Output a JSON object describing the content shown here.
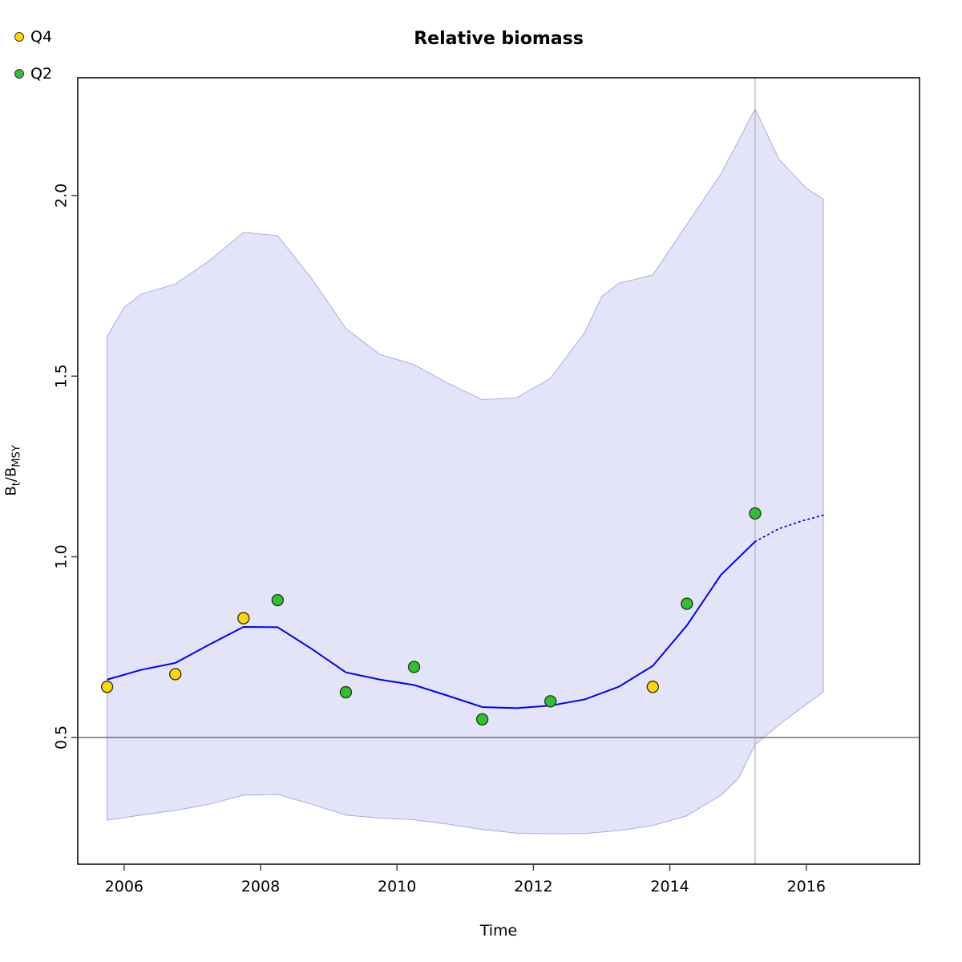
{
  "title": "Relative biomass",
  "legend": {
    "position": "top-left",
    "items": [
      {
        "label": "Q4",
        "color": "#FFD700"
      },
      {
        "label": "Q2",
        "color": "#2DC32D"
      }
    ]
  },
  "axes": {
    "x": {
      "label": "Time",
      "ticks": [
        "2006",
        "2008",
        "2010",
        "2012",
        "2014",
        "2016"
      ],
      "tick_values": [
        2006,
        2008,
        2010,
        2012,
        2014,
        2016
      ],
      "range": [
        2005.32,
        2017.66
      ]
    },
    "y": {
      "label_plain": "Bt/BMSY",
      "label_parts": [
        {
          "t": "B",
          "sub": false
        },
        {
          "t": "t",
          "sub": true
        },
        {
          "t": "/",
          "sub": false
        },
        {
          "t": "B",
          "sub": false
        },
        {
          "t": "MSY",
          "sub": true
        }
      ],
      "ticks": [
        "0.5",
        "1.0",
        "1.5",
        "2.0"
      ],
      "tick_values": [
        0.5,
        1.0,
        1.5,
        2.0
      ],
      "range": [
        0.149,
        2.326
      ]
    }
  },
  "colors": {
    "median_line": "#0000FF",
    "band_fill": "#E4E4F8",
    "band_stroke": "#AAAAE6",
    "q4_point": "#FFD700",
    "q2_point": "#2DC32D",
    "point_stroke": "#333333",
    "h_ref_line": "#333333",
    "v_ref_line": "#B0B0B0",
    "plot_border": "#000000",
    "tick": "#444444"
  },
  "chart_data": {
    "type": "line",
    "title": "Relative biomass",
    "xlabel": "Time",
    "ylabel": "Bt/BMSY",
    "xlim": [
      2005.32,
      2017.66
    ],
    "ylim": [
      0.149,
      2.326
    ],
    "grid": false,
    "legend_position": "top-left-outside",
    "reference_lines": [
      {
        "axis": "y",
        "value": 0.5
      },
      {
        "axis": "x",
        "value": 2015.25
      }
    ],
    "band": {
      "name": "confidence-interval",
      "upper": [
        [
          2005.75,
          1.61
        ],
        [
          2006.0,
          1.69
        ],
        [
          2006.25,
          1.727
        ],
        [
          2006.75,
          1.755
        ],
        [
          2007.25,
          1.82
        ],
        [
          2007.75,
          1.898
        ],
        [
          2008.25,
          1.889
        ],
        [
          2008.75,
          1.77
        ],
        [
          2009.25,
          1.632
        ],
        [
          2009.75,
          1.56
        ],
        [
          2010.25,
          1.532
        ],
        [
          2010.75,
          1.48
        ],
        [
          2011.25,
          1.435
        ],
        [
          2011.75,
          1.44
        ],
        [
          2012.25,
          1.494
        ],
        [
          2012.75,
          1.62
        ],
        [
          2013.0,
          1.72
        ],
        [
          2013.25,
          1.757
        ],
        [
          2013.75,
          1.78
        ],
        [
          2014.25,
          1.92
        ],
        [
          2014.75,
          2.06
        ],
        [
          2015.25,
          2.24
        ],
        [
          2015.6,
          2.1
        ],
        [
          2016.0,
          2.02
        ],
        [
          2016.25,
          1.99
        ]
      ],
      "lower": [
        [
          2005.75,
          0.271
        ],
        [
          2006.25,
          0.285
        ],
        [
          2006.75,
          0.298
        ],
        [
          2007.25,
          0.315
        ],
        [
          2007.75,
          0.34
        ],
        [
          2008.25,
          0.342
        ],
        [
          2008.75,
          0.315
        ],
        [
          2009.25,
          0.285
        ],
        [
          2009.75,
          0.277
        ],
        [
          2010.25,
          0.272
        ],
        [
          2010.75,
          0.26
        ],
        [
          2011.25,
          0.245
        ],
        [
          2011.75,
          0.235
        ],
        [
          2012.25,
          0.233
        ],
        [
          2012.75,
          0.234
        ],
        [
          2013.25,
          0.242
        ],
        [
          2013.75,
          0.256
        ],
        [
          2014.25,
          0.283
        ],
        [
          2014.75,
          0.34
        ],
        [
          2015.0,
          0.385
        ],
        [
          2015.25,
          0.48
        ],
        [
          2015.66,
          0.544
        ],
        [
          2016.25,
          0.626
        ]
      ]
    },
    "series": [
      {
        "name": "median",
        "type": "line",
        "style": "solid",
        "points": [
          [
            2005.75,
            0.66
          ],
          [
            2006.25,
            0.687
          ],
          [
            2006.75,
            0.706
          ],
          [
            2007.25,
            0.757
          ],
          [
            2007.75,
            0.806
          ],
          [
            2008.25,
            0.805
          ],
          [
            2008.75,
            0.745
          ],
          [
            2009.25,
            0.68
          ],
          [
            2009.75,
            0.66
          ],
          [
            2010.25,
            0.645
          ],
          [
            2010.75,
            0.615
          ],
          [
            2011.25,
            0.584
          ],
          [
            2011.75,
            0.581
          ],
          [
            2012.25,
            0.588
          ],
          [
            2012.75,
            0.605
          ],
          [
            2013.25,
            0.64
          ],
          [
            2013.75,
            0.698
          ],
          [
            2014.25,
            0.81
          ],
          [
            2014.75,
            0.95
          ],
          [
            2015.25,
            1.042
          ]
        ]
      },
      {
        "name": "median-forecast",
        "type": "line",
        "style": "dotted",
        "points": [
          [
            2015.25,
            1.042
          ],
          [
            2015.6,
            1.078
          ],
          [
            2015.95,
            1.1
          ],
          [
            2016.25,
            1.115
          ]
        ]
      },
      {
        "name": "Q4",
        "type": "scatter",
        "points": [
          [
            2005.75,
            0.64
          ],
          [
            2006.75,
            0.675
          ],
          [
            2007.75,
            0.83
          ],
          [
            2013.75,
            0.64
          ]
        ]
      },
      {
        "name": "Q2",
        "type": "scatter",
        "points": [
          [
            2008.25,
            0.88
          ],
          [
            2009.25,
            0.625
          ],
          [
            2010.25,
            0.695
          ],
          [
            2011.25,
            0.55
          ],
          [
            2012.25,
            0.6
          ],
          [
            2014.25,
            0.87
          ],
          [
            2015.25,
            1.12
          ]
        ]
      }
    ]
  }
}
